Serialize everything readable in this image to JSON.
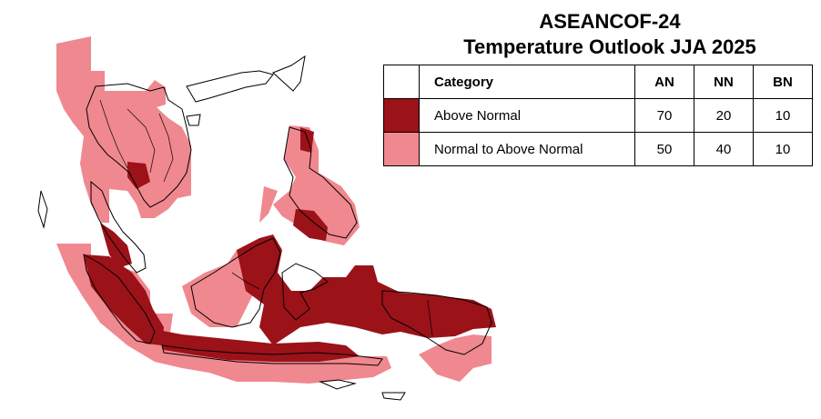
{
  "title": {
    "line1": "ASEANCOF-24",
    "line2": "Temperature Outlook JJA 2025"
  },
  "legend": {
    "headers": {
      "category": "Category",
      "an": "AN",
      "nn": "NN",
      "bn": "BN"
    },
    "rows": [
      {
        "label": "Above Normal",
        "color": "#9b1219",
        "an": "70",
        "nn": "20",
        "bn": "10"
      },
      {
        "label": "Normal to Above Normal",
        "color": "#f0888f",
        "an": "50",
        "nn": "40",
        "bn": "10"
      }
    ]
  },
  "colors": {
    "above_normal": "#9b1219",
    "normal_to_above_normal": "#f0888f",
    "outline": "#000000"
  }
}
